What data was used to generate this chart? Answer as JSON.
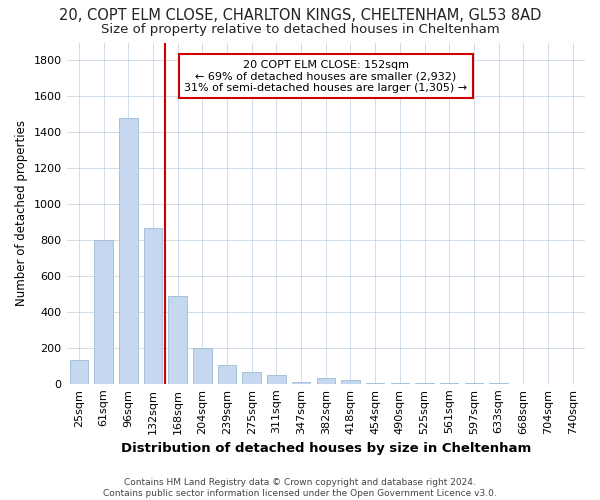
{
  "title": "20, COPT ELM CLOSE, CHARLTON KINGS, CHELTENHAM, GL53 8AD",
  "subtitle": "Size of property relative to detached houses in Cheltenham",
  "xlabel": "Distribution of detached houses by size in Cheltenham",
  "ylabel": "Number of detached properties",
  "categories": [
    "25sqm",
    "61sqm",
    "96sqm",
    "132sqm",
    "168sqm",
    "204sqm",
    "239sqm",
    "275sqm",
    "311sqm",
    "347sqm",
    "382sqm",
    "418sqm",
    "454sqm",
    "490sqm",
    "525sqm",
    "561sqm",
    "597sqm",
    "633sqm",
    "668sqm",
    "704sqm",
    "740sqm"
  ],
  "values": [
    130,
    800,
    1480,
    870,
    490,
    200,
    105,
    65,
    50,
    10,
    30,
    20,
    5,
    5,
    5,
    5,
    3,
    2,
    1,
    1,
    1
  ],
  "bar_color": "#c5d8f0",
  "bar_edgecolor": "#9bbcd8",
  "vline_x": 3.5,
  "vline_color": "#cc0000",
  "annotation_text": "20 COPT ELM CLOSE: 152sqm\n← 69% of detached houses are smaller (2,932)\n31% of semi-detached houses are larger (1,305) →",
  "annotation_box_color": "#cc0000",
  "ylim": [
    0,
    1900
  ],
  "yticks": [
    0,
    200,
    400,
    600,
    800,
    1000,
    1200,
    1400,
    1600,
    1800
  ],
  "footer": "Contains HM Land Registry data © Crown copyright and database right 2024.\nContains public sector information licensed under the Open Government Licence v3.0.",
  "background_color": "#ffffff",
  "grid_color": "#c8d8e8",
  "title_fontsize": 10.5,
  "subtitle_fontsize": 9.5,
  "xlabel_fontsize": 9.5,
  "ylabel_fontsize": 8.5,
  "tick_fontsize": 8,
  "annotation_fontsize": 8,
  "footer_fontsize": 6.5
}
